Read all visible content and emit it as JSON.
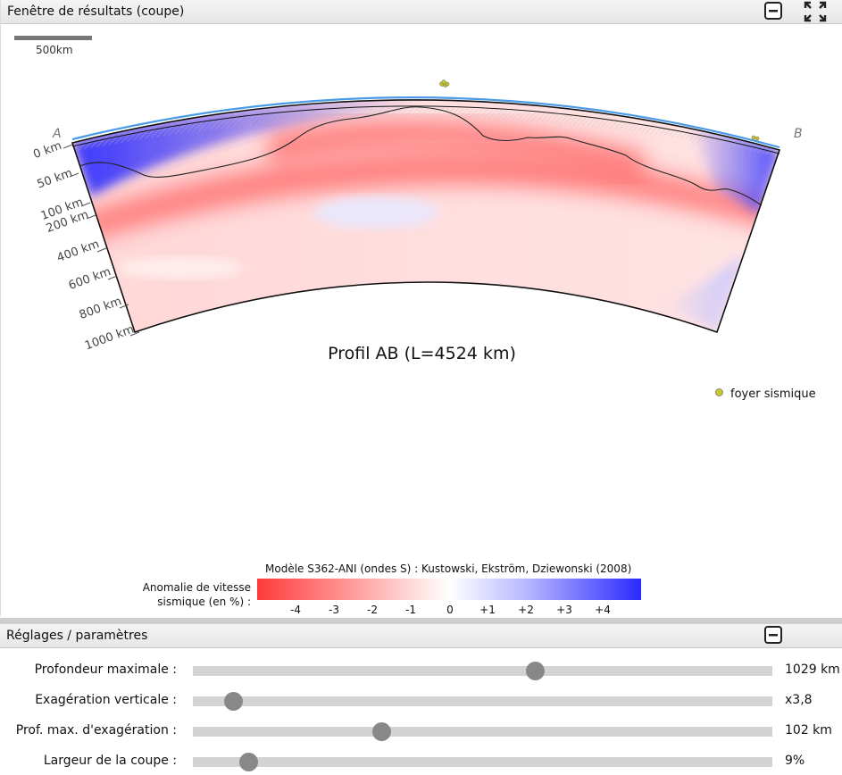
{
  "results_panel": {
    "title": "Fenêtre de résultats (coupe)",
    "scale_label": "500km",
    "point_a": "A",
    "point_b": "B",
    "depth_labels": [
      "0 km",
      "50 km",
      "100 km",
      "200 km",
      "400 km",
      "600 km",
      "800 km",
      "1000 km"
    ],
    "profile_title": "Profil AB (L=4524 km)",
    "legend_label": "foyer sismique",
    "model_caption": "Modèle S362-ANI (ondes S) : Kustowski, Ekström, Dziewonski (2008)",
    "colorbar_label_line1": "Anomalie de vitesse",
    "colorbar_label_line2": "sismique (en %) :",
    "colorbar_ticks": [
      "-4",
      "-3",
      "-2",
      "-1",
      "0",
      "+1",
      "+2",
      "+3",
      "+4"
    ],
    "colors": {
      "negative": "#ff3a3a",
      "positive": "#2a2aff",
      "quake": "#c8c820",
      "surface": "#4a9ae8"
    }
  },
  "settings_panel": {
    "title": "Réglages / paramètres",
    "sliders": [
      {
        "label": "Profondeur maximale :",
        "value": "1029 km",
        "position": 0.59
      },
      {
        "label": "Exagération verticale :",
        "value": "x3,8",
        "position": 0.07
      },
      {
        "label": "Prof. max. d'exagération :",
        "value": "102 km",
        "position": 0.325
      },
      {
        "label": "Largeur de la coupe :",
        "value": "9%",
        "position": 0.095
      }
    ]
  }
}
